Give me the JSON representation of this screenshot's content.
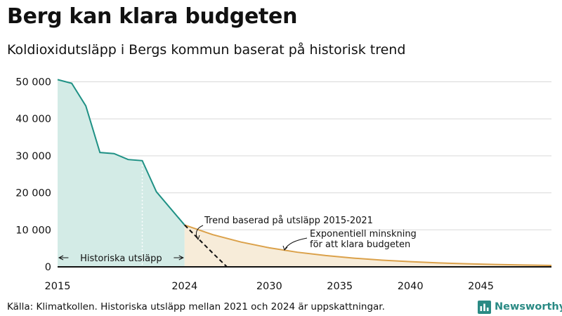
{
  "title": "Berg kan klara budgeten",
  "subtitle": "Koldioxidutsläpp i Bergs kommun baserat på historisk trend",
  "source": "Källa: Klimatkollen. Historiska utsläpp mellan 2021 och 2024 är uppskattningar.",
  "brand": {
    "name": "Newsworthy",
    "icon": "newsworthy-logo-icon"
  },
  "colors": {
    "historical_line": "#1f9185",
    "historical_fill": "#d3ebe6",
    "budget_line": "#dba14a",
    "budget_fill": "#f7ecd9",
    "grid": "#d9d9d9",
    "text": "#111111",
    "brand": "#2a8a84"
  },
  "chart_data": {
    "type": "area",
    "x_tick_labels": [
      "2015",
      "2024",
      "2030",
      "2035",
      "2040",
      "2045"
    ],
    "y_tick_labels": [
      "0",
      "10 000",
      "20 000",
      "30 000",
      "40 000",
      "50 000"
    ],
    "xlim": [
      2015,
      2050
    ],
    "ylim": [
      0,
      52000
    ],
    "grid": "horizontal",
    "series": [
      {
        "key": "historical",
        "style": "area",
        "x": [
          2015,
          2016,
          2017,
          2018,
          2019,
          2020,
          2021,
          2022,
          2024
        ],
        "y": [
          50600,
          49600,
          43500,
          30900,
          30600,
          29000,
          28700,
          20300,
          11300
        ]
      },
      {
        "key": "budget",
        "style": "area",
        "x": [
          2024,
          2026,
          2028,
          2030,
          2032,
          2034,
          2036,
          2038,
          2040,
          2042,
          2044,
          2046,
          2048,
          2050
        ],
        "y": [
          11300,
          8700,
          6700,
          5150,
          3950,
          3050,
          2350,
          1800,
          1400,
          1070,
          830,
          640,
          490,
          380
        ]
      },
      {
        "key": "trend",
        "style": "dashed",
        "x": [
          2024,
          2025,
          2026,
          2027
        ],
        "y": [
          11300,
          7500,
          3700,
          0
        ]
      }
    ],
    "annotations": [
      {
        "key": "trend_label",
        "text": "Trend baserad på utsläpp 2015-2021"
      },
      {
        "key": "budget_label",
        "lines": [
          "Exponentiell minskning",
          "för att klara budgeten"
        ]
      },
      {
        "key": "historical_label",
        "text": "Historiska utsläpp"
      }
    ]
  }
}
